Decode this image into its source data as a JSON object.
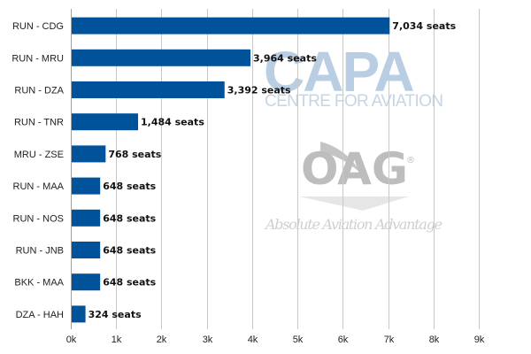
{
  "chart_data": {
    "type": "bar",
    "orientation": "horizontal",
    "categories": [
      "RUN - CDG",
      "RUN - MRU",
      "RUN - DZA",
      "RUN - TNR",
      "MRU - ZSE",
      "RUN - MAA",
      "RUN - NOS",
      "RUN - JNB",
      "BKK - MAA",
      "DZA - HAH"
    ],
    "values": [
      7034,
      3964,
      3392,
      1484,
      768,
      648,
      648,
      648,
      648,
      324
    ],
    "data_labels": [
      "7,034 seats",
      "3,964 seats",
      "3,392 seats",
      "1,484 seats",
      "768 seats",
      "648 seats",
      "648 seats",
      "648 seats",
      "648 seats",
      "324 seats"
    ],
    "x_ticks": [
      0,
      1000,
      2000,
      3000,
      4000,
      5000,
      6000,
      7000,
      8000,
      9000
    ],
    "x_tick_labels": [
      "0k",
      "1k",
      "2k",
      "3k",
      "4k",
      "5k",
      "6k",
      "7k",
      "8k",
      "9k"
    ],
    "xlim": [
      0,
      9000
    ],
    "grid": true,
    "bar_color": "#00529b",
    "title": "",
    "xlabel": "",
    "ylabel": ""
  },
  "watermarks": {
    "capa_logo": "CAPA",
    "capa_subtitle": "CENTRE FOR AVIATION",
    "oag_logo": "OAG",
    "oag_registered": "®",
    "oag_tagline": "Absolute Aviation Advantage"
  }
}
